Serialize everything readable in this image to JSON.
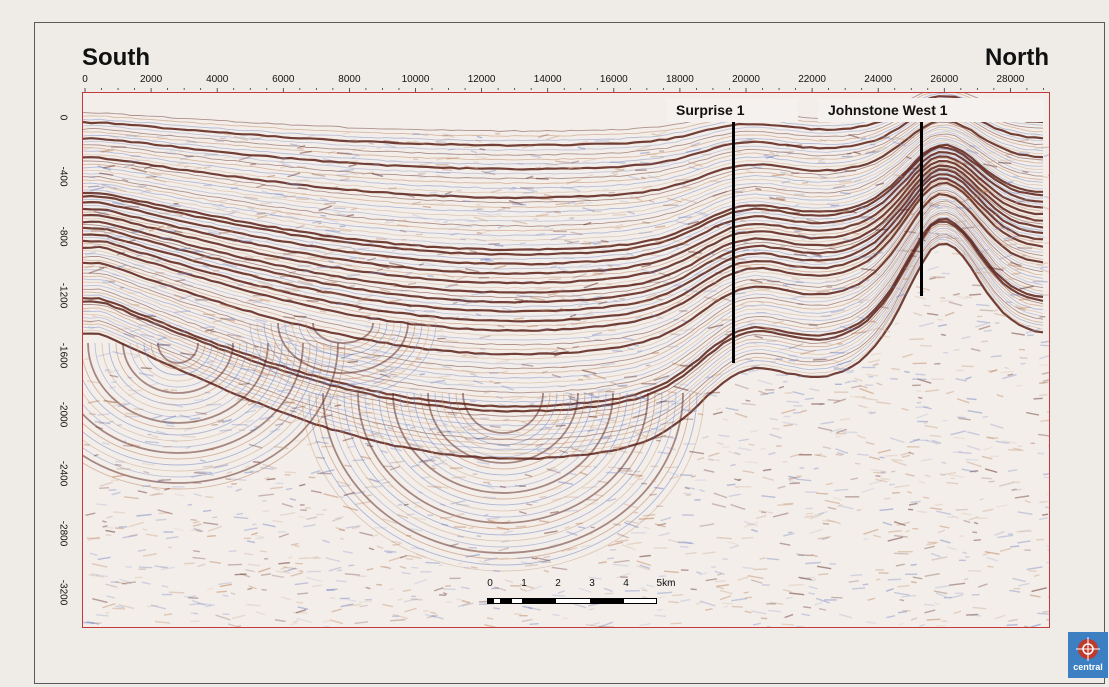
{
  "labels": {
    "south": "South",
    "north": "North"
  },
  "x_axis": {
    "ticks": [
      "0",
      "2000",
      "4000",
      "6000",
      "8000",
      "10000",
      "12000",
      "14000",
      "16000",
      "18000",
      "20000",
      "22000",
      "24000",
      "26000",
      "28000"
    ],
    "range": [
      0,
      29000
    ]
  },
  "y_axis": {
    "ticks": [
      "0",
      "-400",
      "-800",
      "-1200",
      "-1600",
      "-2000",
      "-2400",
      "-2800",
      "-3200"
    ],
    "range": [
      0,
      -3200
    ]
  },
  "wells": [
    {
      "name": "Surprise 1",
      "x": 19600,
      "depth": -1650
    },
    {
      "name": "Johnstone West 1",
      "x": 25300,
      "depth": -1200
    }
  ],
  "scale_bar": {
    "labels": [
      "0",
      "1",
      "2",
      "3",
      "4",
      "5km"
    ]
  },
  "logo": {
    "text": "central",
    "icon": "company-logo-icon"
  },
  "colors": {
    "frame_border": "#c23a3a",
    "wavelet_dark": "#5a2018",
    "wavelet_warm": "#b87850",
    "wavelet_blue": "#6c7fbf",
    "logo_bg": "#3c7fc2"
  }
}
